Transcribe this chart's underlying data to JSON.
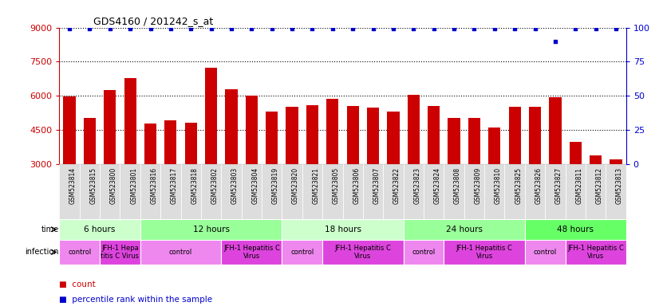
{
  "title": "GDS4160 / 201242_s_at",
  "samples": [
    "GSM523814",
    "GSM523815",
    "GSM523800",
    "GSM523801",
    "GSM523816",
    "GSM523817",
    "GSM523818",
    "GSM523802",
    "GSM523803",
    "GSM523804",
    "GSM523819",
    "GSM523820",
    "GSM523821",
    "GSM523805",
    "GSM523806",
    "GSM523807",
    "GSM523822",
    "GSM523823",
    "GSM523824",
    "GSM523808",
    "GSM523809",
    "GSM523810",
    "GSM523825",
    "GSM523826",
    "GSM523827",
    "GSM523811",
    "GSM523812",
    "GSM523813"
  ],
  "counts": [
    5980,
    5020,
    6270,
    6790,
    4780,
    4920,
    4820,
    7250,
    6300,
    6000,
    5330,
    5530,
    5580,
    5870,
    5560,
    5480,
    5330,
    6050,
    5570,
    5020,
    5020,
    4620,
    5530,
    5540,
    5950,
    3970,
    3380,
    3230
  ],
  "percentile_ranks": [
    99,
    99,
    99,
    99,
    99,
    99,
    99,
    99,
    99,
    99,
    99,
    99,
    99,
    99,
    99,
    99,
    99,
    99,
    99,
    99,
    99,
    99,
    99,
    99,
    90,
    99,
    99,
    99
  ],
  "bar_color": "#cc0000",
  "dot_color": "#0000cc",
  "ylim_left": [
    3000,
    9000
  ],
  "ylim_right": [
    0,
    100
  ],
  "yticks_left": [
    3000,
    4500,
    6000,
    7500,
    9000
  ],
  "yticks_right": [
    0,
    25,
    50,
    75,
    100
  ],
  "grid_values": [
    4500,
    6000,
    7500,
    9000
  ],
  "ybaseline": 3000,
  "time_groups": [
    {
      "label": "6 hours",
      "start": 0,
      "end": 4,
      "color": "#ccffcc"
    },
    {
      "label": "12 hours",
      "start": 4,
      "end": 11,
      "color": "#99ff99"
    },
    {
      "label": "18 hours",
      "start": 11,
      "end": 17,
      "color": "#ccffcc"
    },
    {
      "label": "24 hours",
      "start": 17,
      "end": 23,
      "color": "#99ff99"
    },
    {
      "label": "48 hours",
      "start": 23,
      "end": 28,
      "color": "#66ff66"
    }
  ],
  "infection_groups": [
    {
      "label": "control",
      "start": 0,
      "end": 2,
      "color": "#ee88ee"
    },
    {
      "label": "JFH-1 Hepa\ntitis C Virus",
      "start": 2,
      "end": 4,
      "color": "#dd44dd"
    },
    {
      "label": "control",
      "start": 4,
      "end": 8,
      "color": "#ee88ee"
    },
    {
      "label": "JFH-1 Hepatitis C\nVirus",
      "start": 8,
      "end": 11,
      "color": "#dd44dd"
    },
    {
      "label": "control",
      "start": 11,
      "end": 13,
      "color": "#ee88ee"
    },
    {
      "label": "JFH-1 Hepatitis C\nVirus",
      "start": 13,
      "end": 17,
      "color": "#dd44dd"
    },
    {
      "label": "control",
      "start": 17,
      "end": 19,
      "color": "#ee88ee"
    },
    {
      "label": "JFH-1 Hepatitis C\nVirus",
      "start": 19,
      "end": 23,
      "color": "#dd44dd"
    },
    {
      "label": "control",
      "start": 23,
      "end": 25,
      "color": "#ee88ee"
    },
    {
      "label": "JFH-1 Hepatitis C\nVirus",
      "start": 25,
      "end": 28,
      "color": "#dd44dd"
    }
  ],
  "legend_count_color": "#cc0000",
  "legend_pct_color": "#0000cc",
  "bg_color": "#ffffff",
  "axis_label_color": "#cc0000",
  "axis_right_color": "#0000cc",
  "tick_label_bg": "#dddddd"
}
